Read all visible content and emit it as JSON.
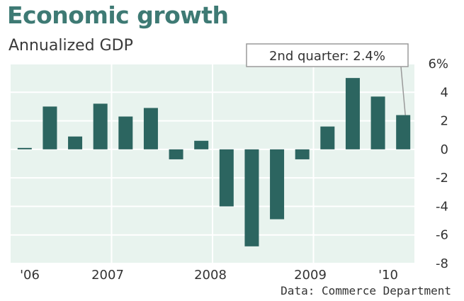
{
  "chart_data": {
    "type": "bar",
    "title": "Economic growth",
    "subtitle": "Annualized GDP",
    "source": "Data: Commerce Department",
    "values": [
      0.1,
      3.0,
      0.9,
      3.2,
      2.3,
      2.9,
      -0.7,
      0.6,
      -4.0,
      -6.8,
      -4.9,
      -0.7,
      1.6,
      5.0,
      3.7,
      2.4
    ],
    "x_tick_labels": [
      "'06",
      "2007",
      "2008",
      "2009",
      "'10"
    ],
    "y_tick_labels": [
      "6%",
      "4",
      "2",
      "0",
      "-2",
      "-4",
      "-6",
      "-8"
    ],
    "ylim": [
      -8,
      6
    ],
    "grid": true,
    "annotation": {
      "text": "2nd quarter: 2.4%",
      "target_index": 15
    },
    "colors": {
      "bar": "#2c6560",
      "plot_bg": "#e8f3ee",
      "grid": "#ffffff",
      "title": "#3e7a74"
    }
  }
}
